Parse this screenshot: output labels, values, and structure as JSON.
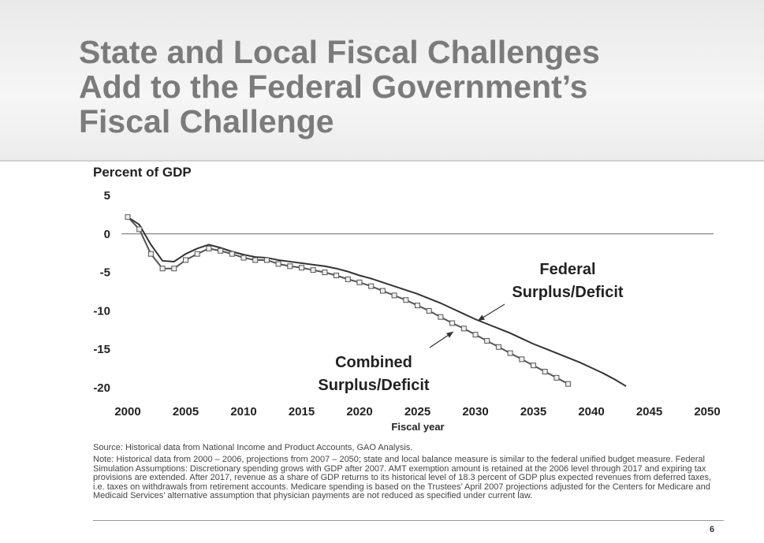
{
  "title_lines": [
    "State and Local Fiscal Challenges",
    "Add to the Federal Government’s",
    "Fiscal Challenge"
  ],
  "chart_data": {
    "type": "line",
    "y_label": "Percent of GDP",
    "x_label": "Fiscal year",
    "x": [
      2000,
      2001,
      2002,
      2003,
      2004,
      2005,
      2006,
      2007,
      2008,
      2009,
      2010,
      2011,
      2012,
      2013,
      2014,
      2015,
      2016,
      2017,
      2018,
      2019,
      2020,
      2021,
      2022,
      2023,
      2024,
      2025,
      2026,
      2027,
      2028,
      2029,
      2030,
      2031,
      2032,
      2033,
      2034,
      2035,
      2036,
      2037,
      2038,
      2039,
      2040,
      2041,
      2042,
      2043
    ],
    "series": [
      {
        "name": "Federal Surplus/Deficit",
        "color": "#333333",
        "marker": false,
        "values": [
          2.2,
          1.2,
          -1.4,
          -3.5,
          -3.6,
          -2.6,
          -1.9,
          -1.4,
          -1.8,
          -2.3,
          -2.7,
          -3.0,
          -3.1,
          -3.4,
          -3.6,
          -3.8,
          -4.0,
          -4.2,
          -4.5,
          -4.9,
          -5.4,
          -5.8,
          -6.3,
          -6.8,
          -7.3,
          -7.8,
          -8.4,
          -9.0,
          -9.7,
          -10.4,
          -11.1,
          -11.7,
          -12.3,
          -12.9,
          -13.6,
          -14.3,
          -14.9,
          -15.5,
          -16.1,
          -16.7,
          -17.4,
          -18.1,
          -18.9,
          -19.8
        ]
      },
      {
        "name": "Combined Surplus/Deficit",
        "color": "#555555",
        "marker": true,
        "values": [
          2.2,
          0.6,
          -2.6,
          -4.5,
          -4.5,
          -3.4,
          -2.6,
          -1.9,
          -2.2,
          -2.6,
          -3.1,
          -3.4,
          -3.4,
          -3.9,
          -4.2,
          -4.4,
          -4.7,
          -5.0,
          -5.4,
          -5.9,
          -6.3,
          -6.8,
          -7.4,
          -8.0,
          -8.6,
          -9.3,
          -10.0,
          -10.8,
          -11.6,
          -12.3,
          -13.1,
          -13.9,
          -14.7,
          -15.5,
          -16.3,
          -17.1,
          -17.9,
          -18.7,
          -19.5,
          null,
          null,
          null,
          null,
          null
        ]
      }
    ],
    "annotations": [
      [
        "Federal",
        "Surplus/Deficit"
      ],
      [
        "Combined",
        "Surplus/Deficit"
      ]
    ],
    "xlim": [
      2000,
      2050
    ],
    "xticks": [
      2000,
      2005,
      2010,
      2015,
      2020,
      2025,
      2030,
      2035,
      2040,
      2045,
      2050
    ],
    "ylim": [
      -20,
      5
    ],
    "yticks": [
      5,
      0,
      -5,
      -10,
      -15,
      -20
    ],
    "zero_line": true
  },
  "source": "Source: Historical data from National Income and Product Accounts, GAO Analysis.",
  "note": "Note:  Historical data from  2000 – 2006, projections from 2007 – 2050; state and local balance measure is similar to the federal unified budget measure. Federal Simulation Assumptions: Discretionary spending grows with GDP after 2007.  AMT exemption amount is retained at the 2006 level through 2017 and expiring tax provisions are extended.  After  2017, revenue as a share of GDP returns to its historical level of 18.3 percent of GDP plus expected revenues from deferred taxes, i.e. taxes on withdrawals from retirement accounts.  Medicare spending is based on the Trustees’ April 2007 projections adjusted for the Centers for Medicare and Medicaid Services’ alternative assumption that physician payments are not reduced as specified under current law.",
  "page_number": "6"
}
